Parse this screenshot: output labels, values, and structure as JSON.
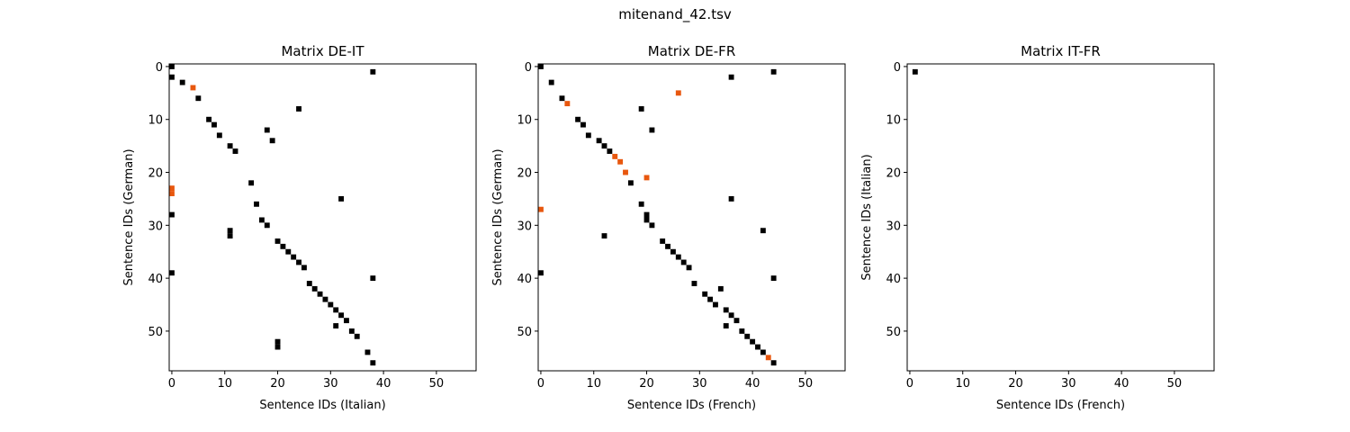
{
  "figure": {
    "title": "mitenand_42.tsv"
  },
  "colors": {
    "match": "#000000",
    "highlight": "#e8570e",
    "axis": "#000000",
    "background": "#ffffff"
  },
  "chart_data": [
    {
      "type": "heatmap",
      "title": "Matrix DE-IT",
      "xlabel": "Sentence IDs (Italian)",
      "ylabel": "Sentence IDs (German)",
      "xlim": [
        -0.5,
        57.5
      ],
      "ylim": [
        57.5,
        -0.5
      ],
      "xticks": [
        0,
        10,
        20,
        30,
        40,
        50
      ],
      "yticks": [
        0,
        10,
        20,
        30,
        40,
        50
      ],
      "grid": false,
      "points": [
        [
          0,
          0
        ],
        [
          38,
          1
        ],
        [
          0,
          2
        ],
        [
          2,
          3
        ],
        [
          5,
          6
        ],
        [
          24,
          8
        ],
        [
          7,
          10
        ],
        [
          8,
          11
        ],
        [
          18,
          12
        ],
        [
          9,
          13
        ],
        [
          19,
          14
        ],
        [
          11,
          15
        ],
        [
          12,
          16
        ],
        [
          15,
          22
        ],
        [
          32,
          25
        ],
        [
          16,
          26
        ],
        [
          0,
          28
        ],
        [
          17,
          29
        ],
        [
          18,
          30
        ],
        [
          11,
          31
        ],
        [
          11,
          32
        ],
        [
          20,
          33
        ],
        [
          21,
          34
        ],
        [
          22,
          35
        ],
        [
          23,
          36
        ],
        [
          24,
          37
        ],
        [
          25,
          38
        ],
        [
          0,
          39
        ],
        [
          38,
          40
        ],
        [
          26,
          41
        ],
        [
          27,
          42
        ],
        [
          28,
          43
        ],
        [
          29,
          44
        ],
        [
          30,
          45
        ],
        [
          31,
          46
        ],
        [
          32,
          47
        ],
        [
          33,
          48
        ],
        [
          31,
          49
        ],
        [
          34,
          50
        ],
        [
          35,
          51
        ],
        [
          20,
          52
        ],
        [
          20,
          53
        ],
        [
          37,
          54
        ],
        [
          38,
          56
        ]
      ],
      "highlight_points": [
        [
          4,
          4
        ],
        [
          0,
          23
        ],
        [
          0,
          24
        ]
      ]
    },
    {
      "type": "heatmap",
      "title": "Matrix DE-FR",
      "xlabel": "Sentence IDs (French)",
      "ylabel": "Sentence IDs (German)",
      "xlim": [
        -0.5,
        57.5
      ],
      "ylim": [
        57.5,
        -0.5
      ],
      "xticks": [
        0,
        10,
        20,
        30,
        40,
        50
      ],
      "yticks": [
        0,
        10,
        20,
        30,
        40,
        50
      ],
      "grid": false,
      "points": [
        [
          0,
          0
        ],
        [
          44,
          1
        ],
        [
          36,
          2
        ],
        [
          2,
          3
        ],
        [
          4,
          6
        ],
        [
          19,
          8
        ],
        [
          7,
          10
        ],
        [
          8,
          11
        ],
        [
          21,
          12
        ],
        [
          9,
          13
        ],
        [
          11,
          14
        ],
        [
          12,
          15
        ],
        [
          13,
          16
        ],
        [
          17,
          22
        ],
        [
          36,
          25
        ],
        [
          19,
          26
        ],
        [
          20,
          28
        ],
        [
          20,
          29
        ],
        [
          21,
          30
        ],
        [
          42,
          31
        ],
        [
          12,
          32
        ],
        [
          23,
          33
        ],
        [
          24,
          34
        ],
        [
          25,
          35
        ],
        [
          26,
          36
        ],
        [
          27,
          37
        ],
        [
          28,
          38
        ],
        [
          0,
          39
        ],
        [
          44,
          40
        ],
        [
          29,
          41
        ],
        [
          34,
          42
        ],
        [
          31,
          43
        ],
        [
          32,
          44
        ],
        [
          33,
          45
        ],
        [
          35,
          46
        ],
        [
          36,
          47
        ],
        [
          37,
          48
        ],
        [
          35,
          49
        ],
        [
          38,
          50
        ],
        [
          39,
          51
        ],
        [
          40,
          52
        ],
        [
          41,
          53
        ],
        [
          42,
          54
        ],
        [
          44,
          56
        ]
      ],
      "highlight_points": [
        [
          26,
          5
        ],
        [
          5,
          7
        ],
        [
          14,
          17
        ],
        [
          15,
          18
        ],
        [
          16,
          20
        ],
        [
          20,
          21
        ],
        [
          0,
          27
        ],
        [
          43,
          55
        ]
      ]
    },
    {
      "type": "heatmap",
      "title": "Matrix IT-FR",
      "xlabel": "Sentence IDs (French)",
      "ylabel": "Sentence IDs (Italian)",
      "xlim": [
        -0.5,
        57.5
      ],
      "ylim": [
        57.5,
        -0.5
      ],
      "xticks": [
        0,
        10,
        20,
        30,
        40,
        50
      ],
      "yticks": [
        0,
        10,
        20,
        30,
        40,
        50
      ],
      "grid": false,
      "points": [
        [
          1,
          1
        ]
      ],
      "highlight_points": []
    }
  ]
}
